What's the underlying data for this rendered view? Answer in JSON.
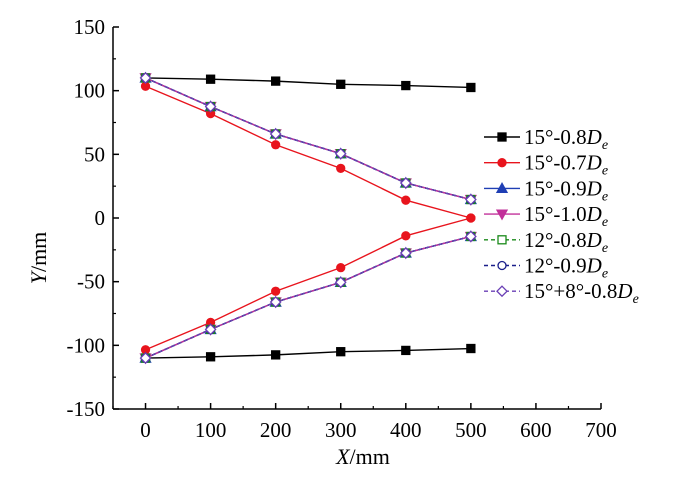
{
  "chart_data": {
    "type": "line",
    "title": "",
    "xlabel": {
      "var": "X",
      "unit": "/mm"
    },
    "ylabel": {
      "var": "Y",
      "unit": "/mm"
    },
    "xlim": [
      -50,
      700
    ],
    "ylim": [
      -150,
      150
    ],
    "xticks": [
      0,
      100,
      200,
      300,
      400,
      500,
      600,
      700
    ],
    "yticks": [
      -150,
      -100,
      -50,
      0,
      50,
      100,
      150
    ],
    "grid": false,
    "legend_position": "right",
    "x": [
      0,
      100,
      200,
      300,
      400,
      500
    ],
    "series": [
      {
        "name": "15°-0.8De",
        "label_parts": {
          "text": "15°-0.8",
          "var": "D",
          "sub": "e"
        },
        "color": "#000000",
        "marker": "square-filled",
        "dash": "",
        "upper": [
          110,
          109,
          107.5,
          105,
          104,
          102.5
        ],
        "lower": [
          -110,
          -109,
          -107.5,
          -105,
          -104,
          -102.5
        ]
      },
      {
        "name": "15°-0.7De",
        "label_parts": {
          "text": "15°-0.7",
          "var": "D",
          "sub": "e"
        },
        "color": "#e8141d",
        "marker": "circle-filled",
        "dash": "",
        "upper": [
          103.5,
          82,
          57.5,
          39,
          14,
          0
        ],
        "lower": [
          -103.5,
          -82,
          -57.5,
          -39,
          -14,
          0
        ]
      },
      {
        "name": "15°-0.9De",
        "label_parts": {
          "text": "15°-0.9",
          "var": "D",
          "sub": "e"
        },
        "color": "#1f3fb4",
        "marker": "triangle-up-filled",
        "dash": "",
        "upper": [
          110,
          87.5,
          66,
          50.5,
          27.5,
          14.5
        ],
        "lower": [
          -110,
          -87.5,
          -66,
          -50.5,
          -27.5,
          -14.5
        ]
      },
      {
        "name": "15°-1.0De",
        "label_parts": {
          "text": "15°-1.0",
          "var": "D",
          "sub": "e"
        },
        "color": "#c2309a",
        "marker": "triangle-down-filled",
        "dash": "",
        "upper": [
          110,
          87.5,
          66,
          50.5,
          27.5,
          14.5
        ],
        "lower": [
          -110,
          -87.5,
          -66,
          -50.5,
          -27.5,
          -14.5
        ]
      },
      {
        "name": "12°-0.8De",
        "label_parts": {
          "text": "12°-0.8",
          "var": "D",
          "sub": "e"
        },
        "color": "#1a8a1a",
        "marker": "square-open",
        "dash": "4,3",
        "upper": [
          110,
          87.5,
          66,
          50.5,
          27.5,
          14.5
        ],
        "lower": [
          -110,
          -87.5,
          -66,
          -50.5,
          -27.5,
          -14.5
        ]
      },
      {
        "name": "12°-0.9De",
        "label_parts": {
          "text": "12°-0.9",
          "var": "D",
          "sub": "e"
        },
        "color": "#1a1f8a",
        "marker": "circle-open",
        "dash": "4,3",
        "upper": [
          110,
          87.5,
          66,
          50.5,
          27.5,
          14.5
        ],
        "lower": [
          -110,
          -87.5,
          -66,
          -50.5,
          -27.5,
          -14.5
        ]
      },
      {
        "name": "15°+8°-0.8De",
        "label_parts": {
          "text": "15°+8°-0.8",
          "var": "D",
          "sub": "e"
        },
        "color": "#6a3fb5",
        "marker": "diamond-open",
        "dash": "4,3",
        "upper": [
          110,
          87.5,
          66,
          50.5,
          27.5,
          14.5
        ],
        "lower": [
          -110,
          -87.5,
          -66,
          -50.5,
          -27.5,
          -14.5
        ]
      }
    ]
  }
}
